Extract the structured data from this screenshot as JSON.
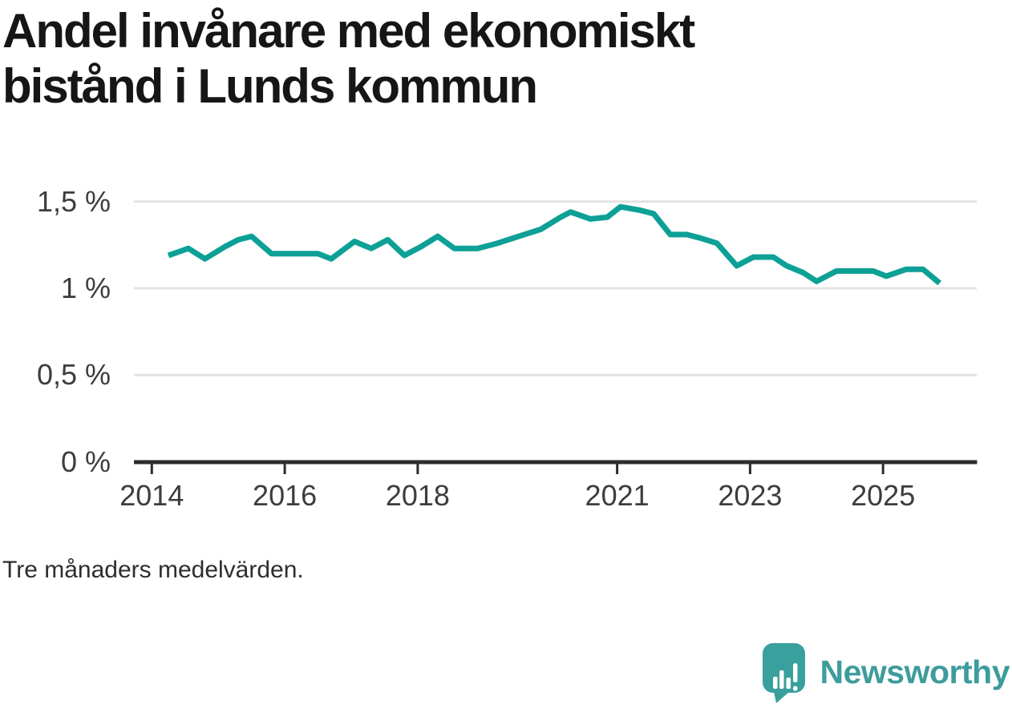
{
  "header": {
    "title_lines": [
      "Andel invånare med ekonomiskt",
      "bistånd i Lunds kommun"
    ]
  },
  "footnote": "Tre månaders medelvärden.",
  "branding": {
    "name": "Newsworthy",
    "icon": "newsworthy-speech-bubble-bar-chart-icon",
    "icon_color": "#3aa09d",
    "wordmark_color": "#3e9c9c"
  },
  "chart_data": {
    "type": "line",
    "title": "Andel invånare med ekonomiskt bistånd i Lunds kommun",
    "subtitle": "Tre månaders medelvärden.",
    "unit": "%",
    "grid": "horizontal",
    "line_color": "#0da096",
    "axis_color": "#2d2d2d",
    "gridline_color": "#e3e3e3",
    "xlim": [
      2013.73,
      2026.4
    ],
    "ylim": [
      0,
      1.51
    ],
    "y_ticks": [
      {
        "value": 0,
        "label": "0 %"
      },
      {
        "value": 0.5,
        "label": "0,5 %"
      },
      {
        "value": 1,
        "label": "1 %"
      },
      {
        "value": 1.5,
        "label": "1,5 %"
      }
    ],
    "x_ticks": [
      {
        "value": 2014,
        "label": "2014"
      },
      {
        "value": 2016,
        "label": "2016"
      },
      {
        "value": 2018,
        "label": "2018"
      },
      {
        "value": 2021,
        "label": "2021"
      },
      {
        "value": 2023,
        "label": "2023"
      },
      {
        "value": 2025,
        "label": "2025"
      }
    ],
    "series": [
      {
        "name": "Andel invånare med ekonomiskt bistånd, Lunds kommun",
        "color": "#0da096",
        "points": [
          [
            2014.25,
            1.19
          ],
          [
            2014.55,
            1.23
          ],
          [
            2014.8,
            1.17
          ],
          [
            2015.1,
            1.24
          ],
          [
            2015.3,
            1.28
          ],
          [
            2015.5,
            1.3
          ],
          [
            2015.8,
            1.2
          ],
          [
            2016.1,
            1.2
          ],
          [
            2016.5,
            1.2
          ],
          [
            2016.7,
            1.17
          ],
          [
            2017.05,
            1.27
          ],
          [
            2017.3,
            1.23
          ],
          [
            2017.55,
            1.28
          ],
          [
            2017.8,
            1.19
          ],
          [
            2018.05,
            1.24
          ],
          [
            2018.3,
            1.3
          ],
          [
            2018.55,
            1.23
          ],
          [
            2018.9,
            1.23
          ],
          [
            2019.2,
            1.26
          ],
          [
            2019.6,
            1.31
          ],
          [
            2019.85,
            1.34
          ],
          [
            2020.15,
            1.41
          ],
          [
            2020.3,
            1.44
          ],
          [
            2020.6,
            1.4
          ],
          [
            2020.85,
            1.41
          ],
          [
            2021.05,
            1.47
          ],
          [
            2021.35,
            1.45
          ],
          [
            2021.55,
            1.43
          ],
          [
            2021.8,
            1.31
          ],
          [
            2022.05,
            1.31
          ],
          [
            2022.25,
            1.29
          ],
          [
            2022.5,
            1.26
          ],
          [
            2022.8,
            1.13
          ],
          [
            2023.05,
            1.18
          ],
          [
            2023.35,
            1.18
          ],
          [
            2023.55,
            1.13
          ],
          [
            2023.8,
            1.09
          ],
          [
            2024.0,
            1.04
          ],
          [
            2024.3,
            1.1
          ],
          [
            2024.85,
            1.1
          ],
          [
            2025.05,
            1.07
          ],
          [
            2025.35,
            1.11
          ],
          [
            2025.6,
            1.11
          ],
          [
            2025.85,
            1.03
          ]
        ]
      }
    ]
  }
}
